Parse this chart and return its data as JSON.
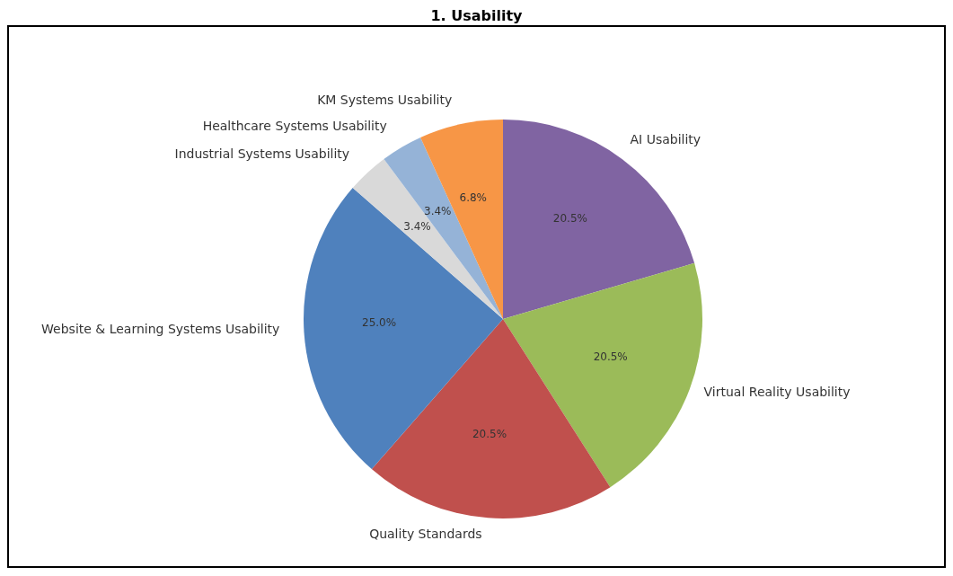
{
  "chart_data": {
    "type": "pie",
    "title": "1. Usability",
    "categories": [
      "AI Usability",
      "Virtual Reality Usability",
      "Quality Standards",
      "Website & Learning Systems Usability",
      "Industrial Systems Usability",
      "Healthcare Systems Usability",
      "KM Systems Usability"
    ],
    "values": [
      20.5,
      20.5,
      20.5,
      25.0,
      3.4,
      3.4,
      6.8
    ],
    "colors": [
      "#8064a2",
      "#9bbb59",
      "#c0504d",
      "#4f81bd",
      "#d9d9d9",
      "#95b3d7",
      "#f79646"
    ],
    "value_labels": [
      "20.5%",
      "20.5%",
      "20.5%",
      "25.0%",
      "3.4%",
      "3.4%",
      "6.8%"
    ],
    "legend": false
  }
}
